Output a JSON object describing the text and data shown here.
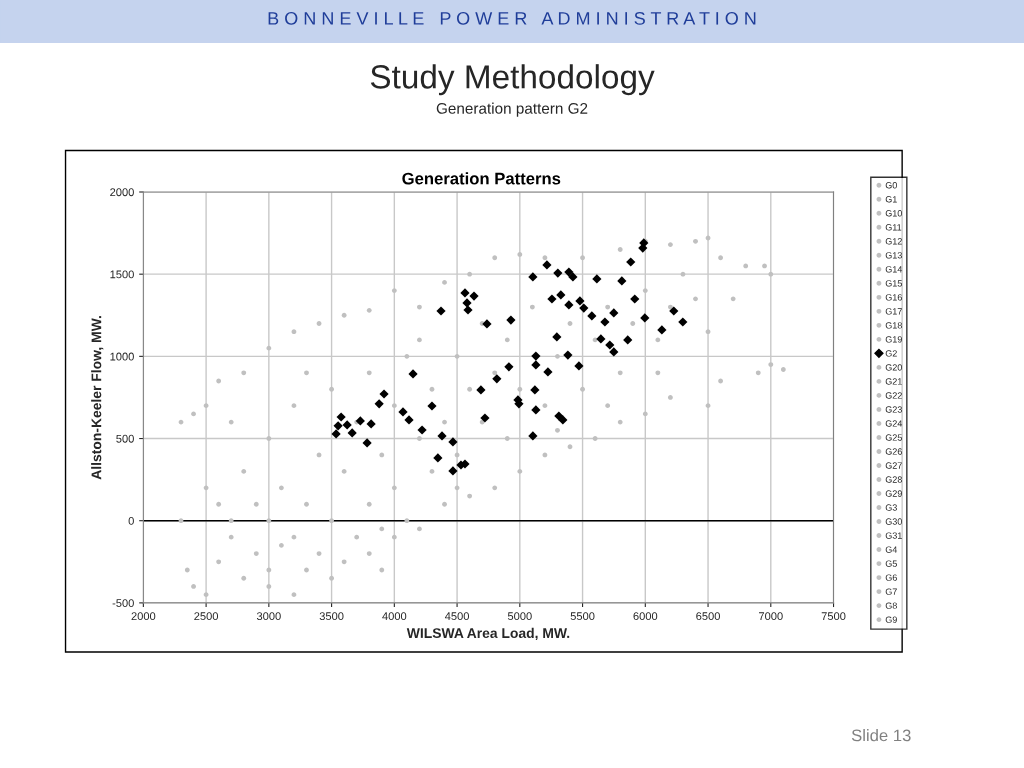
{
  "chart_data": {
    "type": "scatter",
    "title": "Study Methodology",
    "subtitle": "Generation pattern G2",
    "annotations": [
      "B O N N E V I L L E   P O W E R   A D M I N I S T R A T I O N",
      "Generation Patterns",
      "Slide 13"
    ],
    "xlabel": "WILSWA Area Load, MW.",
    "ylabel": "Allston-Keeler Flow, MW.",
    "xlim": [
      2000,
      7500
    ],
    "xticks": [
      2000,
      2500,
      3000,
      3500,
      4000,
      4500,
      5000,
      5500,
      6000,
      6500,
      7000,
      7500
    ],
    "ylim": [
      -500,
      2000
    ],
    "yticks": [
      -500,
      0,
      500,
      1000,
      1500,
      2000
    ],
    "grid": true,
    "legend": "right",
    "ref_lines": [
      {
        "axis": "y",
        "value": 0,
        "color": "#000000"
      }
    ],
    "series": [
      {
        "color": "#c0c0c0",
        "marker": "circle",
        "x": [
          2300,
          2350,
          2400,
          2500,
          2600,
          2700,
          2800,
          2900,
          3000,
          3100,
          3200,
          3300,
          3400,
          3500,
          3600,
          3700,
          3800,
          3900,
          4000,
          4100,
          4200,
          4400,
          4600,
          4800,
          5000,
          5200,
          5400,
          5600,
          5800,
          6000,
          6200,
          6500,
          6600,
          6900,
          7000,
          7100,
          2300,
          2400,
          2500,
          2600,
          2800,
          3000,
          3200,
          3400,
          3600,
          3800,
          4000,
          4200,
          4400,
          4600,
          4800,
          5000,
          5200,
          5500,
          5800,
          6000,
          6200,
          6400,
          6500,
          6600,
          6800,
          6950,
          7000,
          6700,
          6500,
          2500,
          2600,
          2700,
          2800,
          2900,
          3000,
          3000,
          3100,
          3200,
          3200,
          3300,
          3400,
          3500,
          3500,
          3600,
          3700,
          3800,
          3800,
          3900,
          4000,
          4000,
          4100,
          4200,
          4300,
          4300,
          4400,
          4500,
          4500,
          4600,
          4700,
          4700,
          4800,
          4900,
          4900,
          5000,
          5100,
          5200,
          5300,
          5400,
          5500,
          5600,
          5700,
          5800,
          5900,
          6000,
          6100,
          6200,
          6300,
          6400,
          6100,
          5700,
          5300,
          4500,
          3900,
          3000,
          2700,
          3300,
          4200
        ],
        "values": [
          0,
          -300,
          -400,
          -450,
          -250,
          -100,
          -350,
          -200,
          -400,
          -150,
          -450,
          -300,
          -200,
          -350,
          -250,
          -100,
          -200,
          -50,
          -100,
          0,
          -50,
          100,
          150,
          200,
          300,
          400,
          450,
          500,
          600,
          650,
          750,
          700,
          850,
          900,
          950,
          920,
          600,
          650,
          700,
          850,
          900,
          1050,
          1150,
          1200,
          1250,
          1280,
          1400,
          1300,
          1450,
          1500,
          1600,
          1620,
          1600,
          1600,
          1650,
          1700,
          1680,
          1700,
          1720,
          1600,
          1550,
          1550,
          1500,
          1350,
          1150,
          200,
          100,
          0,
          300,
          100,
          0,
          500,
          200,
          -100,
          700,
          100,
          400,
          0,
          800,
          300,
          600,
          100,
          900,
          400,
          200,
          700,
          1000,
          500,
          300,
          800,
          600,
          1000,
          400,
          800,
          600,
          1200,
          900,
          500,
          1100,
          800,
          1300,
          700,
          1000,
          1200,
          800,
          1100,
          1300,
          900,
          1200,
          1400,
          1100,
          1300,
          1500,
          1350,
          900,
          700,
          550,
          200,
          -300,
          -300,
          600,
          900,
          1100
        ]
      },
      {
        "name": "G0",
        "color": "#c0c0c0",
        "marker": "circle"
      },
      {
        "name": "G1",
        "color": "#c0c0c0",
        "marker": "circle"
      },
      {
        "name": "G10",
        "color": "#c0c0c0",
        "marker": "circle"
      },
      {
        "name": "G11",
        "color": "#c0c0c0",
        "marker": "circle"
      },
      {
        "name": "G12",
        "color": "#c0c0c0",
        "marker": "circle"
      },
      {
        "name": "G13",
        "color": "#c0c0c0",
        "marker": "circle"
      },
      {
        "name": "G14",
        "color": "#c0c0c0",
        "marker": "circle"
      },
      {
        "name": "G15",
        "color": "#c0c0c0",
        "marker": "circle"
      },
      {
        "name": "G16",
        "color": "#c0c0c0",
        "marker": "circle"
      },
      {
        "name": "G17",
        "color": "#c0c0c0",
        "marker": "circle"
      },
      {
        "name": "G18",
        "color": "#c0c0c0",
        "marker": "circle"
      },
      {
        "name": "G19",
        "color": "#c0c0c0",
        "marker": "circle"
      },
      {
        "name": "G2",
        "color": "#000000",
        "marker": "diamond",
        "x": [
          5988,
          5980,
          5884,
          5216,
          5104,
          5303,
          5391,
          5423,
          5614,
          5813,
          4372,
          4563,
          4635,
          4579,
          4587,
          4738,
          5256,
          5327,
          5479,
          5749,
          5916,
          5996,
          6227,
          6299,
          6132,
          5678,
          5717,
          5749,
          5860,
          5646,
          5383,
          5128,
          5295,
          5471,
          5224,
          5128,
          5120,
          5128,
          5311,
          5343,
          4993,
          4380,
          4221,
          4467,
          4347,
          4563,
          4467,
          4531,
          3815,
          3729,
          3552,
          3624,
          3664,
          3783,
          3536,
          3576,
          4117,
          4069,
          4300,
          3918,
          3879,
          4149,
          4722,
          4913,
          4985,
          4690,
          4817,
          5104,
          4929,
          5510,
          5574,
          5391
        ],
        "values": [
          1690,
          1659,
          1574,
          1556,
          1483,
          1507,
          1513,
          1483,
          1471,
          1459,
          1276,
          1386,
          1367,
          1325,
          1282,
          1197,
          1349,
          1374,
          1337,
          1264,
          1349,
          1234,
          1276,
          1209,
          1161,
          1209,
          1069,
          1027,
          1100,
          1106,
          1008,
          1002,
          1118,
          942,
          905,
          948,
          796,
          674,
          637,
          613,
          711,
          516,
          552,
          479,
          382,
          345,
          303,
          339,
          589,
          607,
          577,
          583,
          534,
          473,
          528,
          631,
          613,
          662,
          698,
          771,
          711,
          893,
          625,
          936,
          735,
          796,
          863,
          516,
          1221,
          1294,
          1246,
          1313
        ]
      },
      {
        "name": "G20",
        "color": "#c0c0c0",
        "marker": "circle"
      },
      {
        "name": "G21",
        "color": "#c0c0c0",
        "marker": "circle"
      },
      {
        "name": "G22",
        "color": "#c0c0c0",
        "marker": "circle"
      },
      {
        "name": "G23",
        "color": "#c0c0c0",
        "marker": "circle"
      },
      {
        "name": "G24",
        "color": "#c0c0c0",
        "marker": "circle"
      },
      {
        "name": "G25",
        "color": "#c0c0c0",
        "marker": "circle"
      },
      {
        "name": "G26",
        "color": "#c0c0c0",
        "marker": "circle"
      },
      {
        "name": "G27",
        "color": "#c0c0c0",
        "marker": "circle"
      },
      {
        "name": "G28",
        "color": "#c0c0c0",
        "marker": "circle"
      },
      {
        "name": "G29",
        "color": "#c0c0c0",
        "marker": "circle"
      },
      {
        "name": "G3",
        "color": "#c0c0c0",
        "marker": "circle"
      },
      {
        "name": "G30",
        "color": "#c0c0c0",
        "marker": "circle"
      },
      {
        "name": "G31",
        "color": "#c0c0c0",
        "marker": "circle"
      },
      {
        "name": "G4",
        "color": "#c0c0c0",
        "marker": "circle"
      },
      {
        "name": "G5",
        "color": "#c0c0c0",
        "marker": "circle"
      },
      {
        "name": "G6",
        "color": "#c0c0c0",
        "marker": "circle"
      },
      {
        "name": "G7",
        "color": "#c0c0c0",
        "marker": "circle"
      },
      {
        "name": "G8",
        "color": "#c0c0c0",
        "marker": "circle"
      },
      {
        "name": "G9",
        "color": "#c0c0c0",
        "marker": "circle"
      }
    ]
  }
}
